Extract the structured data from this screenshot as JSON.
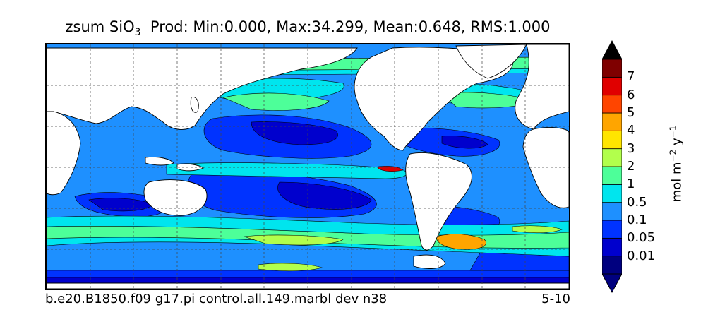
{
  "title": {
    "prefix": "zsum SiO",
    "subscript": "3",
    "stats": "Prod: Min:0.000, Max:34.299, Mean:0.648, RMS:1.000"
  },
  "footer": {
    "run_name": "b.e20.B1850.f09 g17.pi control.all.149.marbl dev n38",
    "years": "5-10"
  },
  "colorbar": {
    "unit_label_base": "mol m",
    "unit_exp1": "−2",
    "unit_mid": " y",
    "unit_exp2": "−1",
    "levels": [
      "0.01",
      "0.05",
      "0.1",
      "0.5",
      "1",
      "2",
      "3",
      "4",
      "5",
      "6",
      "7"
    ],
    "colors": [
      "#00007f",
      "#0000cd",
      "#0033ff",
      "#1e90ff",
      "#00e5ee",
      "#4dff99",
      "#b2ff4c",
      "#ffe500",
      "#ffa500",
      "#ff4500",
      "#e00000",
      "#7f0000"
    ]
  },
  "map": {
    "land_color": "#ffffff",
    "gridlines": "dashed"
  }
}
